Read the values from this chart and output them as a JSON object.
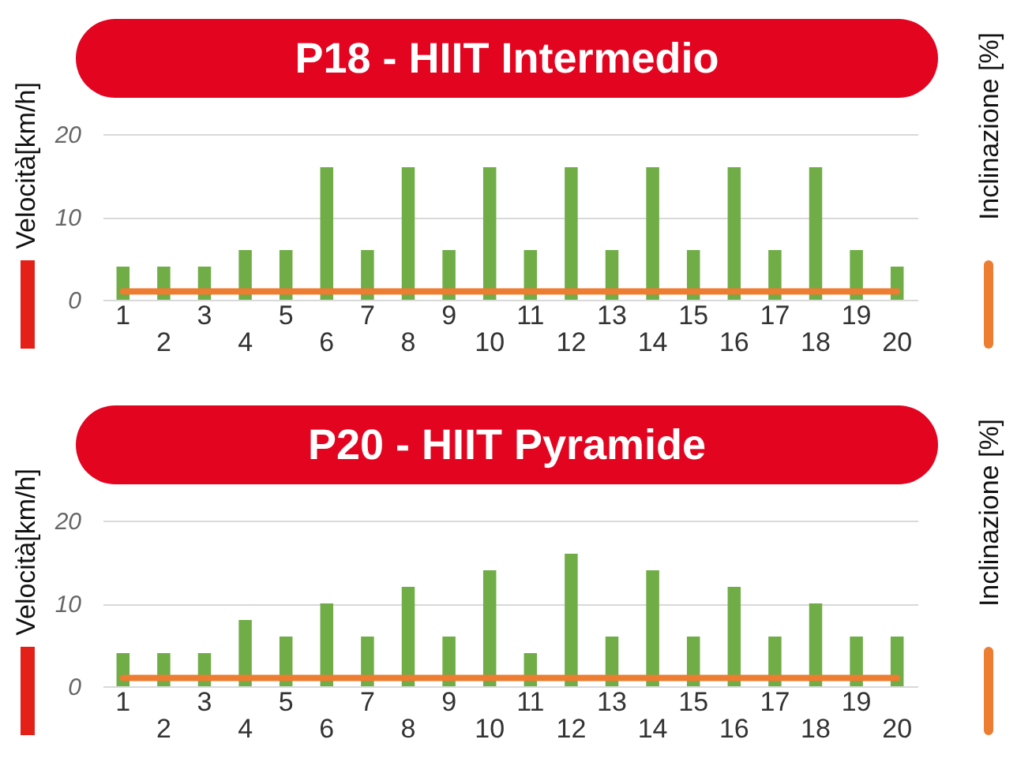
{
  "chart_data": [
    {
      "type": "bar",
      "title": "P18 - HIIT Intermedio",
      "ylabel": "Velocità[km/h]",
      "y2label": "Inclinazione [%]",
      "categories": [
        "1",
        "2",
        "3",
        "4",
        "5",
        "6",
        "7",
        "8",
        "9",
        "10",
        "11",
        "12",
        "13",
        "14",
        "15",
        "16",
        "17",
        "18",
        "19",
        "20"
      ],
      "series": [
        {
          "color": "#70ad47",
          "values": [
            4,
            4,
            4,
            6,
            6,
            16,
            6,
            16,
            6,
            16,
            6,
            16,
            6,
            16,
            6,
            16,
            6,
            16,
            6,
            4
          ]
        },
        {
          "type": "line",
          "color": "#ed7d31",
          "values": [
            1,
            1,
            1,
            1,
            1,
            1,
            1,
            1,
            1,
            1,
            1,
            1,
            1,
            1,
            1,
            1,
            1,
            1,
            1,
            1
          ]
        }
      ],
      "ylim": [
        0,
        20
      ],
      "yticks": [
        0,
        10,
        20
      ],
      "grid": "y"
    },
    {
      "type": "bar",
      "title": "P20 - HIIT Pyramide",
      "ylabel": "Velocità[km/h]",
      "y2label": "Inclinazione [%]",
      "categories": [
        "1",
        "2",
        "3",
        "4",
        "5",
        "6",
        "7",
        "8",
        "9",
        "10",
        "11",
        "12",
        "13",
        "14",
        "15",
        "16",
        "17",
        "18",
        "19",
        "20"
      ],
      "series": [
        {
          "color": "#70ad47",
          "values": [
            4,
            4,
            4,
            8,
            6,
            10,
            6,
            12,
            6,
            14,
            4,
            16,
            6,
            14,
            6,
            12,
            6,
            10,
            6,
            6
          ]
        },
        {
          "type": "line",
          "color": "#ed7d31",
          "values": [
            1,
            1,
            1,
            1,
            1,
            1,
            1,
            1,
            1,
            1,
            1,
            1,
            1,
            1,
            1,
            1,
            1,
            1,
            1,
            1
          ]
        }
      ],
      "ylim": [
        0,
        20
      ],
      "yticks": [
        0,
        10,
        20
      ],
      "grid": "y"
    }
  ]
}
